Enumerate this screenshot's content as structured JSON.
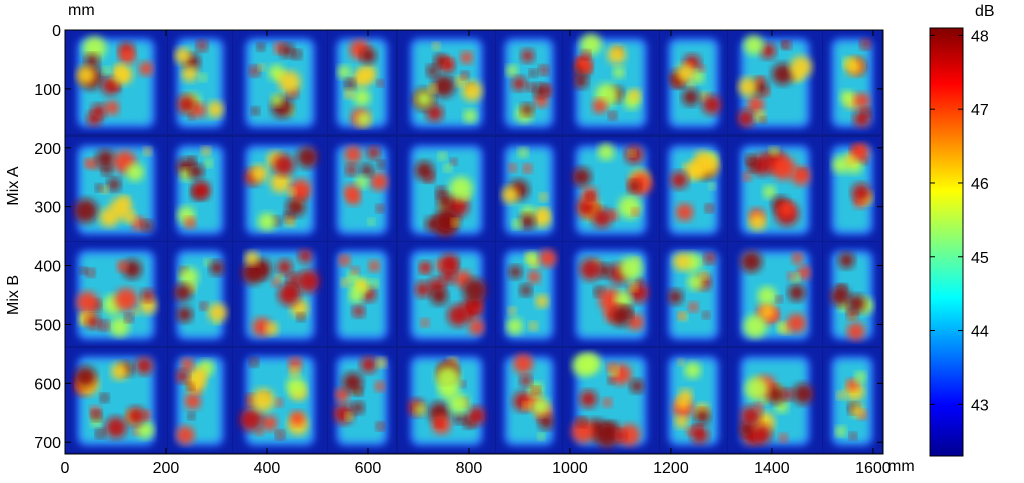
{
  "chart_data": {
    "type": "heatmap",
    "x_unit": "mm",
    "y_unit": "mm",
    "xlim": [
      0,
      1620
    ],
    "ylim": [
      0,
      720
    ],
    "x_ticks": [
      0,
      200,
      400,
      600,
      800,
      1000,
      1200,
      1400,
      1600
    ],
    "y_ticks": [
      0,
      100,
      200,
      300,
      400,
      500,
      600,
      700
    ],
    "row_labels": [
      "Mix A",
      "Mix B"
    ],
    "colorbar": {
      "unit": "dB",
      "range": [
        42.3,
        48.1
      ],
      "ticks": [
        43,
        44,
        45,
        46,
        47,
        48
      ],
      "colormap": [
        "#00008f",
        "#0000ff",
        "#00ffff",
        "#ffff00",
        "#ff0000",
        "#800000"
      ]
    },
    "grid": false,
    "legend_placement": "right"
  }
}
